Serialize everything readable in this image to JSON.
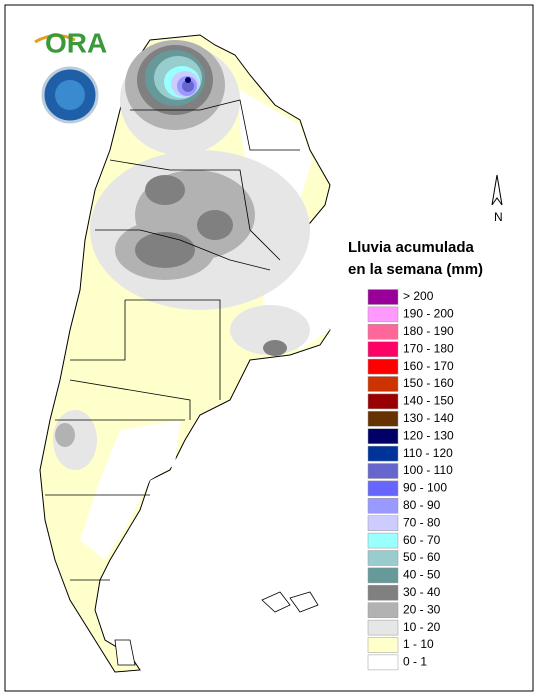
{
  "logo": "ORA",
  "north": "N",
  "legend": {
    "title": [
      "Lluvia acumulada",
      "en la semana (mm)"
    ],
    "items": [
      {
        "label": "> 200",
        "color": "#990099"
      },
      {
        "label": "190 - 200",
        "color": "#ff99ff"
      },
      {
        "label": "180 - 190",
        "color": "#ff6699"
      },
      {
        "label": "170 - 180",
        "color": "#ff0066"
      },
      {
        "label": "160 - 170",
        "color": "#ff0000"
      },
      {
        "label": "150 - 160",
        "color": "#cc3300"
      },
      {
        "label": "140 - 150",
        "color": "#990000"
      },
      {
        "label": "130 - 140",
        "color": "#663300"
      },
      {
        "label": "120 - 130",
        "color": "#000066"
      },
      {
        "label": "110 - 120",
        "color": "#003399"
      },
      {
        "label": "100 - 110",
        "color": "#6666cc"
      },
      {
        "label": "90 - 100",
        "color": "#6666ff"
      },
      {
        "label": "80 - 90",
        "color": "#9999ff"
      },
      {
        "label": "70 - 80",
        "color": "#ccccff"
      },
      {
        "label": "60 - 70",
        "color": "#99ffff"
      },
      {
        "label": "50 - 60",
        "color": "#99cccc"
      },
      {
        "label": "40 - 50",
        "color": "#669999"
      },
      {
        "label": "30 - 40",
        "color": "#808080"
      },
      {
        "label": "20 - 30",
        "color": "#b2b2b2"
      },
      {
        "label": "10 - 20",
        "color": "#e6e6e6"
      },
      {
        "label": "1 - 10",
        "color": "#ffffcc"
      },
      {
        "label": "0 - 1",
        "color": "#ffffff"
      }
    ]
  }
}
